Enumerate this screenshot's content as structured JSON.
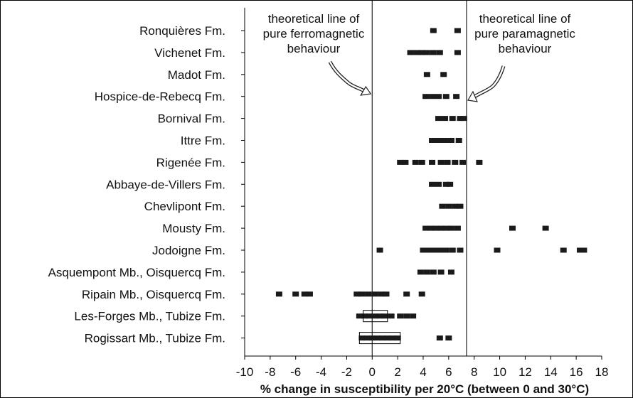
{
  "chart_data": {
    "type": "scatter",
    "title": "",
    "xlabel": "% change in susceptibility per 20°C (between 0 and 30°C)",
    "ylabel": "",
    "xlim": [
      -10,
      18
    ],
    "xticks": [
      "-10",
      "-8",
      "-6",
      "-4",
      "-2",
      "0",
      "2",
      "4",
      "6",
      "8",
      "10",
      "12",
      "14",
      "16",
      "18"
    ],
    "grid": false,
    "categories": [
      "Ronquières Fm.",
      "Vichenet Fm.",
      "Madot Fm.",
      "Hospice-de-Rebecq Fm.",
      "Bornival Fm.",
      "Ittre Fm.",
      "Rigenée Fm.",
      "Abbaye-de-Villers Fm.",
      "Chevlipont Fm.",
      "Mousty Fm.",
      "Jodoigne Fm.",
      "Asquempont Mb., Oisquercq Fm.",
      "Ripain Mb., Oisquercq Fm.",
      "Les-Forges Mb., Tubize Fm.",
      "Rogissart Mb., Tubize Fm."
    ],
    "series": [
      {
        "values": [
          [
            4.8,
            6.7
          ],
          [
            3.0,
            3.5,
            3.9,
            4.3,
            4.8,
            5.3,
            6.7
          ],
          [
            4.3,
            5.6
          ],
          [
            4.2,
            4.7,
            5.2,
            5.8,
            6.6
          ],
          [
            5.2,
            5.7,
            6.3,
            6.9,
            7.2
          ],
          [
            4.7,
            5.2,
            5.7,
            6.2,
            6.8
          ],
          [
            2.2,
            2.6,
            3.4,
            3.9,
            4.7,
            5.4,
            5.9,
            6.5,
            7.1,
            8.4
          ],
          [
            4.7,
            5.2,
            5.8,
            6.1
          ],
          [
            5.5,
            6.0,
            6.5,
            6.9
          ],
          [
            4.2,
            4.6,
            5.0,
            5.4,
            5.8,
            6.2,
            6.7,
            11.0,
            13.6
          ],
          [
            0.6,
            4.0,
            4.3,
            4.7,
            5.1,
            5.5,
            5.8,
            6.3,
            6.9,
            9.8,
            15.0,
            16.3,
            16.6
          ],
          [
            3.8,
            4.3,
            4.8,
            5.4,
            6.2
          ],
          [
            -7.3,
            -6.0,
            -5.3,
            -4.9,
            -1.2,
            -0.8,
            -0.3,
            0.2,
            0.7,
            1.1,
            2.7,
            3.9
          ],
          [
            -1.0,
            -0.6,
            -0.2,
            0.2,
            0.6,
            1.0,
            1.5,
            2.2,
            2.7,
            3.2
          ],
          [
            -0.8,
            -0.4,
            0.0,
            0.4,
            0.8,
            1.2,
            1.6,
            2.0,
            5.3,
            6.0
          ]
        ]
      }
    ],
    "outlined_ranges": [
      {
        "category": "Les-Forges Mb., Tubize Fm.",
        "from": -0.7,
        "to": 1.2
      },
      {
        "category": "Rogissart Mb., Tubize Fm.",
        "from": -1.0,
        "to": 2.2
      }
    ],
    "reference_lines": [
      {
        "x": 0,
        "label": [
          "theoretical line of",
          "pure ferromagnetic",
          "behaviour"
        ]
      },
      {
        "x": 7.4,
        "label": [
          "theoretical line of",
          "pure paramagnetic",
          "behaviour"
        ]
      }
    ]
  }
}
